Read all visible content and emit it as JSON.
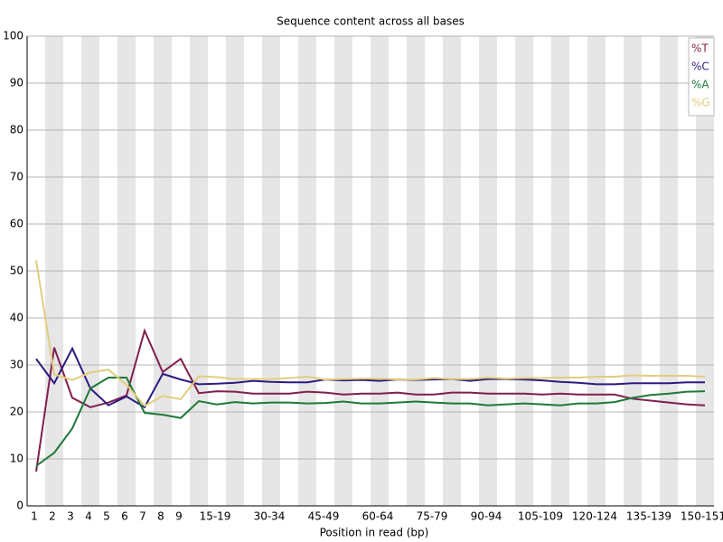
{
  "chart_data": {
    "type": "line",
    "title": "Sequence content across all bases",
    "x_label": "Position in read (bp)",
    "categories": [
      "1",
      "2",
      "3",
      "4",
      "5",
      "6",
      "7",
      "8",
      "9",
      null,
      "15-19",
      null,
      null,
      "30-34",
      null,
      null,
      "45-49",
      null,
      null,
      "60-64",
      null,
      null,
      "75-79",
      null,
      null,
      "90-94",
      null,
      null,
      "105-109",
      null,
      null,
      "120-124",
      null,
      null,
      "135-139",
      null,
      null,
      "150-151"
    ],
    "ylim": [
      0,
      100
    ],
    "yticks": [
      0,
      10,
      20,
      30,
      40,
      50,
      60,
      70,
      80,
      90,
      100
    ],
    "grid": true,
    "legend": "top-right",
    "series": [
      {
        "name": "%T",
        "color": "#7f1f4e",
        "values": [
          7.3,
          33.7,
          23.0,
          21.0,
          22.0,
          23.5,
          37.3,
          28.5,
          31.3,
          24.0,
          24.4,
          24.3,
          23.9,
          23.9,
          23.9,
          24.3,
          24.1,
          23.7,
          23.9,
          23.9,
          24.1,
          23.7,
          23.7,
          24.1,
          24.1,
          23.9,
          23.9,
          23.9,
          23.7,
          23.9,
          23.7,
          23.7,
          23.7,
          22.8,
          22.4,
          22.0,
          21.6,
          21.4
        ]
      },
      {
        "name": "%C",
        "color": "#2e1a80",
        "values": [
          31.3,
          26.1,
          33.5,
          25.0,
          21.4,
          23.3,
          21.0,
          28.1,
          26.9,
          25.9,
          26.0,
          26.2,
          26.6,
          26.4,
          26.3,
          26.3,
          26.9,
          26.7,
          26.8,
          26.6,
          26.9,
          26.8,
          26.9,
          27.0,
          26.6,
          27.0,
          27.0,
          26.9,
          26.7,
          26.4,
          26.2,
          25.9,
          25.9,
          26.1,
          26.1,
          26.1,
          26.3,
          26.3
        ]
      },
      {
        "name": "%A",
        "color": "#1e7a38",
        "values": [
          8.5,
          11.3,
          16.5,
          25.0,
          27.3,
          27.3,
          19.8,
          19.4,
          18.7,
          22.3,
          21.6,
          22.1,
          21.8,
          22.0,
          22.0,
          21.8,
          21.9,
          22.2,
          21.8,
          21.8,
          22.0,
          22.2,
          22.0,
          21.8,
          21.8,
          21.4,
          21.6,
          21.8,
          21.6,
          21.4,
          21.8,
          21.8,
          22.1,
          23.0,
          23.6,
          23.9,
          24.3,
          24.4
        ]
      },
      {
        "name": "%G",
        "color": "#e2cd7c",
        "values": [
          52.3,
          28.0,
          26.8,
          28.4,
          29.0,
          25.8,
          21.3,
          23.4,
          22.7,
          27.6,
          27.4,
          27.0,
          27.0,
          27.0,
          27.2,
          27.5,
          26.9,
          27.0,
          27.1,
          27.1,
          26.9,
          26.9,
          27.2,
          27.0,
          27.0,
          27.3,
          27.1,
          27.2,
          27.2,
          27.3,
          27.3,
          27.5,
          27.5,
          27.8,
          27.7,
          27.7,
          27.7,
          27.5
        ]
      }
    ]
  }
}
